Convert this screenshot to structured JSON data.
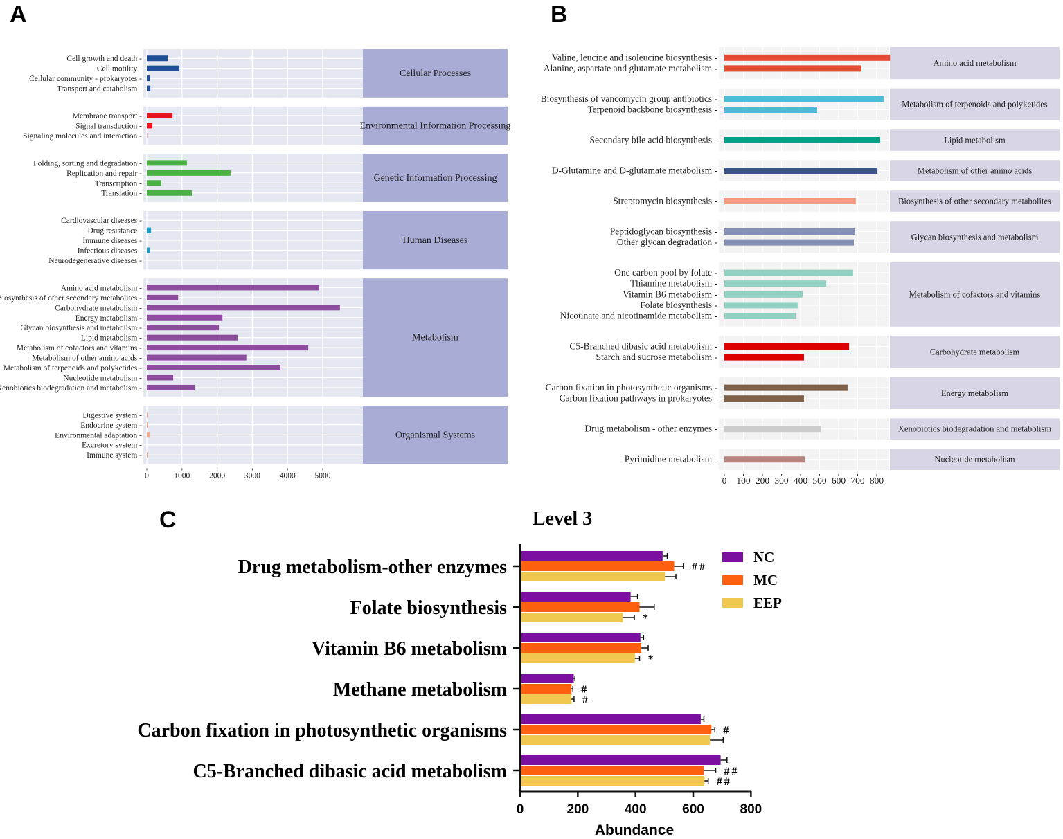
{
  "panel_letters": [
    "A",
    "B",
    "C"
  ],
  "chart_data": [
    {
      "panel": "A",
      "type": "bar",
      "orientation": "horizontal",
      "xlim": [
        0,
        5900
      ],
      "xticks": [
        0,
        1000,
        2000,
        3000,
        4000,
        5000
      ],
      "groups": [
        {
          "name": "Cellular Processes",
          "color": "#1f4e96",
          "categories": [
            "Cell growth and death",
            "Cell motility",
            "Cellular community - prokaryotes",
            "Transport and catabolism"
          ],
          "values": [
            590,
            925,
            80,
            100
          ]
        },
        {
          "name": "Environmental Information Processing",
          "color": "#e8141b",
          "categories": [
            "Membrane transport",
            "Signal transduction",
            "Signaling molecules and interaction"
          ],
          "values": [
            730,
            160,
            5
          ]
        },
        {
          "name": "Genetic Information Processing",
          "color": "#4cb047",
          "categories": [
            "Folding, sorting and degradation",
            "Replication and repair",
            "Transcription",
            "Translation"
          ],
          "values": [
            1140,
            2380,
            410,
            1280
          ]
        },
        {
          "name": "Human Diseases",
          "color": "#1a9cc4",
          "categories": [
            "Cardiovascular diseases",
            "Drug resistance",
            "Immune diseases",
            "Infectious diseases",
            "Neurodegenerative diseases"
          ],
          "values": [
            0,
            120,
            0,
            80,
            0
          ]
        },
        {
          "name": "Metabolism",
          "color": "#8e4c9e",
          "categories": [
            "Amino acid metabolism",
            "Biosynthesis of other secondary metabolites",
            "Carbohydrate metabolism",
            "Energy metabolism",
            "Glycan biosynthesis and metabolism",
            "Lipid metabolism",
            "Metabolism of cofactors and vitamins",
            "Metabolism of other amino acids",
            "Metabolism of terpenoids and polyketides",
            "Nucleotide metabolism",
            "Xenobiotics biodegradation and metabolism"
          ],
          "values": [
            4900,
            890,
            5490,
            2150,
            2050,
            2580,
            4590,
            2830,
            3800,
            750,
            1360
          ]
        },
        {
          "name": "Organismal Systems",
          "color": "#f4a582",
          "categories": [
            "Digestive system",
            "Endocrine system",
            "Environmental adaptation",
            "Excretory system",
            "Immune system"
          ],
          "values": [
            20,
            30,
            80,
            0,
            20
          ]
        }
      ]
    },
    {
      "panel": "B",
      "type": "bar",
      "orientation": "horizontal",
      "xlim": [
        -30,
        870
      ],
      "xticks": [
        0,
        100,
        200,
        300,
        400,
        500,
        600,
        700,
        800
      ],
      "groups": [
        {
          "name": "Amino acid metabolism",
          "color": "#e64b35",
          "categories": [
            "Valine, leucine and isoleucine biosynthesis",
            "Alanine, aspartate and glutamate metabolism"
          ],
          "values": [
            870,
            720
          ]
        },
        {
          "name": "Metabolism of terpenoids and polyketides",
          "color": "#4dbbd5",
          "categories": [
            "Biosynthesis of vancomycin group antibiotics",
            "Terpenoid backbone biosynthesis"
          ],
          "values": [
            836,
            487
          ]
        },
        {
          "name": "Lipid metabolism",
          "color": "#00a087",
          "categories": [
            "Secondary bile acid biosynthesis"
          ],
          "values": [
            818
          ]
        },
        {
          "name": "Metabolism of other amino acids",
          "color": "#3c5488",
          "categories": [
            "D-Glutamine and D-glutamate metabolism"
          ],
          "values": [
            804
          ]
        },
        {
          "name": "Biosynthesis of other secondary metabolites",
          "color": "#f39b7f",
          "categories": [
            "Streptomycin biosynthesis"
          ],
          "values": [
            690
          ]
        },
        {
          "name": "Glycan biosynthesis and metabolism",
          "color": "#8491b4",
          "categories": [
            "Peptidoglycan biosynthesis",
            "Other glycan degradation"
          ],
          "values": [
            687,
            680
          ]
        },
        {
          "name": "Metabolism of cofactors and vitamins",
          "color": "#91d1c2",
          "categories": [
            "One carbon pool by folate",
            "Thiamine metabolism",
            "Vitamin B6 metabolism",
            "Folate biosynthesis",
            "Nicotinate and nicotinamide metabolism"
          ],
          "values": [
            676,
            535,
            411,
            385,
            375
          ]
        },
        {
          "name": "Carbohydrate metabolism",
          "color": "#dc0000",
          "categories": [
            "C5-Branched dibasic acid metabolism",
            "Starch and sucrose metabolism"
          ],
          "values": [
            655,
            418
          ]
        },
        {
          "name": "Energy metabolism",
          "color": "#7e6148",
          "categories": [
            "Carbon fixation in photosynthetic organisms",
            "Carbon fixation pathways in prokaryotes"
          ],
          "values": [
            647,
            418
          ]
        },
        {
          "name": "Xenobiotics biodegradation and metabolism",
          "color": "#cccccc",
          "categories": [
            "Drug metabolism - other enzymes"
          ],
          "values": [
            509
          ]
        },
        {
          "name": "Nucleotide metabolism",
          "color": "#b8847f",
          "categories": [
            "Pyrimidine metabolism"
          ],
          "values": [
            422
          ]
        }
      ]
    },
    {
      "panel": "C",
      "type": "bar",
      "orientation": "horizontal",
      "title": "Level 3",
      "xlabel": "Abundance",
      "xlim": [
        0,
        800
      ],
      "xticks": [
        0,
        200,
        400,
        600,
        800
      ],
      "legend_position": "top-right",
      "categories": [
        "Drug metabolism-other enzymes",
        "Folate biosynthesis",
        "Vitamin B6 metabolism",
        "Methane metabolism",
        "Carbon fixation in photosynthetic organisms",
        "C5-Branched dibasic acid metabolism"
      ],
      "series": [
        {
          "name": "NC",
          "color": "#7b0fa0",
          "values": [
            494,
            383,
            417,
            186,
            626,
            695
          ],
          "errors": [
            16,
            24,
            11,
            4,
            11,
            22
          ],
          "annotations": [
            "",
            "",
            "",
            "",
            "",
            ""
          ]
        },
        {
          "name": "MC",
          "color": "#ff6010",
          "values": [
            534,
            414,
            420,
            178,
            663,
            636
          ],
          "errors": [
            32,
            51,
            24,
            5,
            12,
            42
          ],
          "annotations": [
            "##",
            "",
            "",
            "#",
            "#",
            "##"
          ]
        },
        {
          "name": "EEP",
          "color": "#f0c850",
          "values": [
            502,
            356,
            398,
            178,
            658,
            639
          ],
          "errors": [
            38,
            40,
            16,
            9,
            46,
            13
          ],
          "annotations": [
            "",
            "*",
            "*",
            "#",
            "",
            "##"
          ]
        }
      ]
    }
  ]
}
